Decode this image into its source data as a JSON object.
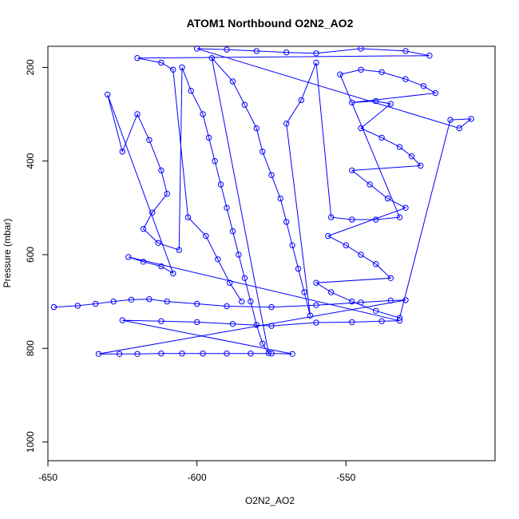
{
  "chart_data": {
    "type": "scatter",
    "title": "ATOM1 Northbound O2N2_AO2",
    "xlabel": "O2N2_AO2",
    "ylabel": "Pressure (mbar)",
    "xlim": [
      -650,
      -500
    ],
    "ylim": [
      1040,
      155
    ],
    "y_inverted": true,
    "x_ticks": [
      -650,
      -600,
      -550
    ],
    "y_ticks": [
      200,
      400,
      600,
      800,
      1000
    ],
    "grid": false,
    "legend": "none",
    "point_style": "open-circle-connected",
    "series": [
      {
        "color": "#0000ff",
        "points": [
          [
            -648,
            712
          ],
          [
            -640,
            709
          ],
          [
            -634,
            705
          ],
          [
            -628,
            700
          ],
          [
            -622,
            696
          ],
          [
            -616,
            695
          ],
          [
            -610,
            700
          ],
          [
            -600,
            705
          ],
          [
            -590,
            710
          ],
          [
            -575,
            712
          ],
          [
            -560,
            708
          ],
          [
            -545,
            702
          ],
          [
            -535,
            698
          ],
          [
            -530,
            697
          ],
          [
            -633,
            812
          ],
          [
            -626,
            812
          ],
          [
            -620,
            812
          ],
          [
            -612,
            811
          ],
          [
            -605,
            811
          ],
          [
            -598,
            811
          ],
          [
            -590,
            811
          ],
          [
            -582,
            811
          ],
          [
            -575,
            811
          ],
          [
            -568,
            812
          ],
          [
            -625,
            740
          ],
          [
            -612,
            742
          ],
          [
            -600,
            744
          ],
          [
            -588,
            748
          ],
          [
            -575,
            752
          ],
          [
            -560,
            745
          ],
          [
            -548,
            744
          ],
          [
            -538,
            742
          ],
          [
            -532,
            741
          ],
          [
            -623,
            605
          ],
          [
            -618,
            615
          ],
          [
            -612,
            625
          ],
          [
            -608,
            640
          ],
          [
            -630,
            258
          ],
          [
            -625,
            380
          ],
          [
            -620,
            300
          ],
          [
            -616,
            355
          ],
          [
            -612,
            420
          ],
          [
            -610,
            470
          ],
          [
            -615,
            510
          ],
          [
            -618,
            545
          ],
          [
            -613,
            575
          ],
          [
            -606,
            590
          ],
          [
            -605,
            200
          ],
          [
            -602,
            250
          ],
          [
            -598,
            300
          ],
          [
            -596,
            350
          ],
          [
            -594,
            400
          ],
          [
            -592,
            450
          ],
          [
            -590,
            500
          ],
          [
            -588,
            550
          ],
          [
            -586,
            600
          ],
          [
            -584,
            650
          ],
          [
            -582,
            700
          ],
          [
            -580,
            750
          ],
          [
            -578,
            790
          ],
          [
            -576,
            810
          ],
          [
            -595,
            180
          ],
          [
            -588,
            230
          ],
          [
            -584,
            280
          ],
          [
            -580,
            330
          ],
          [
            -578,
            380
          ],
          [
            -575,
            430
          ],
          [
            -572,
            480
          ],
          [
            -570,
            530
          ],
          [
            -568,
            580
          ],
          [
            -566,
            630
          ],
          [
            -564,
            680
          ],
          [
            -562,
            730
          ],
          [
            -570,
            320
          ],
          [
            -565,
            270
          ],
          [
            -560,
            190
          ],
          [
            -555,
            520
          ],
          [
            -548,
            525
          ],
          [
            -540,
            525
          ],
          [
            -532,
            520
          ],
          [
            -552,
            215
          ],
          [
            -545,
            205
          ],
          [
            -538,
            210
          ],
          [
            -530,
            225
          ],
          [
            -524,
            240
          ],
          [
            -520,
            255
          ],
          [
            -548,
            275
          ],
          [
            -540,
            272
          ],
          [
            -535,
            278
          ],
          [
            -545,
            330
          ],
          [
            -538,
            350
          ],
          [
            -532,
            370
          ],
          [
            -528,
            390
          ],
          [
            -525,
            410
          ],
          [
            -548,
            420
          ],
          [
            -542,
            450
          ],
          [
            -536,
            480
          ],
          [
            -530,
            500
          ],
          [
            -556,
            560
          ],
          [
            -550,
            580
          ],
          [
            -545,
            600
          ],
          [
            -540,
            620
          ],
          [
            -535,
            650
          ],
          [
            -560,
            660
          ],
          [
            -555,
            680
          ],
          [
            -548,
            700
          ],
          [
            -540,
            720
          ],
          [
            -532,
            735
          ],
          [
            -515,
            312
          ],
          [
            -508,
            310
          ],
          [
            -512,
            330
          ],
          [
            -600,
            160
          ],
          [
            -590,
            162
          ],
          [
            -580,
            165
          ],
          [
            -570,
            168
          ],
          [
            -560,
            170
          ],
          [
            -545,
            160
          ],
          [
            -530,
            165
          ],
          [
            -522,
            175
          ],
          [
            -620,
            180
          ],
          [
            -612,
            190
          ],
          [
            -608,
            205
          ],
          [
            -603,
            520
          ],
          [
            -597,
            560
          ],
          [
            -593,
            610
          ],
          [
            -589,
            660
          ],
          [
            -585,
            700
          ]
        ]
      }
    ]
  }
}
